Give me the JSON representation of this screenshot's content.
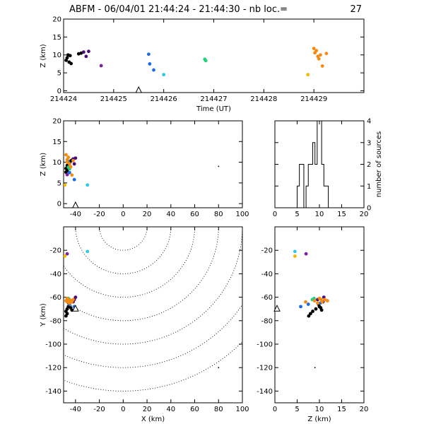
{
  "title": {
    "label": "ABFM - 06/04/01 21:44:24 - 21:44:30 - nb loc.=",
    "count": "27"
  },
  "panels": {
    "time_z": {
      "ylabel": "Z (km)",
      "xlabel": "Time (UT)",
      "xlim": [
        214424,
        214430
      ],
      "ylim": [
        -0.5,
        20
      ],
      "xticks": [
        214424,
        214425,
        214426,
        214427,
        214428,
        214429
      ],
      "yticks": [
        0,
        5,
        10,
        15,
        20
      ]
    },
    "x_z": {
      "ylabel": "Z (km)",
      "xlim": [
        -50,
        100
      ],
      "ylim": [
        -1,
        20
      ],
      "xticks": [
        -40,
        -20,
        0,
        20,
        40,
        60,
        80,
        100
      ],
      "yticks": [
        0,
        5,
        10,
        15,
        20
      ]
    },
    "hist": {
      "ylabel": "number of sources",
      "xlim": [
        0,
        20
      ],
      "ylim": [
        0,
        4
      ],
      "xticks": [
        0,
        5,
        10,
        15,
        20
      ],
      "yticks": [
        0,
        1,
        2,
        3,
        4
      ]
    },
    "x_y": {
      "ylabel": "Y (km)",
      "xlabel": "X (km)",
      "xlim": [
        -50,
        100
      ],
      "ylim": [
        -150,
        0
      ],
      "xticks": [
        -40,
        -20,
        0,
        20,
        40,
        60,
        80,
        100
      ],
      "yticks": [
        -20,
        -40,
        -60,
        -80,
        -100,
        -120,
        -140
      ]
    },
    "z_y": {
      "xlabel": "Z (km)",
      "xlim": [
        0,
        20
      ],
      "ylim": [
        -150,
        0
      ],
      "xticks": [
        0,
        5,
        10,
        15,
        20
      ],
      "yticks": [
        -20,
        -40,
        -60,
        -80,
        -100,
        -120,
        -140
      ]
    }
  },
  "chart_data": {
    "type": "scatter",
    "colors": {
      "early": "#000000",
      "purple": "#4b0a78",
      "violet": "#7a1f9e",
      "blue": "#1a6ee0",
      "cyan": "#2bc9e6",
      "green": "#22d07a",
      "orange": "#f58a10",
      "yellow": "#f5b800"
    },
    "sources": [
      {
        "t": 214424.05,
        "x": -48,
        "y": -72,
        "z": 8.5,
        "c": "early"
      },
      {
        "t": 214424.07,
        "x": -47,
        "y": -70,
        "z": 9.2,
        "c": "early"
      },
      {
        "t": 214424.09,
        "x": -46,
        "y": -68,
        "z": 10.0,
        "c": "early"
      },
      {
        "t": 214424.11,
        "x": -47,
        "y": -74,
        "z": 8.0,
        "c": "early"
      },
      {
        "t": 214424.13,
        "x": -45,
        "y": -66,
        "z": 9.8,
        "c": "early"
      },
      {
        "t": 214424.15,
        "x": -48,
        "y": -76,
        "z": 7.6,
        "c": "early"
      },
      {
        "t": 214424.3,
        "x": -44,
        "y": -69,
        "z": 10.3,
        "c": "early"
      },
      {
        "t": 214424.35,
        "x": -43,
        "y": -71,
        "z": 10.5,
        "c": "early"
      },
      {
        "t": 214424.4,
        "x": -42,
        "y": -64,
        "z": 10.8,
        "c": "purple"
      },
      {
        "t": 214424.45,
        "x": -41,
        "y": -62,
        "z": 9.6,
        "c": "purple"
      },
      {
        "t": 214424.5,
        "x": -40,
        "y": -60,
        "z": 11.0,
        "c": "purple"
      },
      {
        "t": 214424.75,
        "x": -47,
        "y": -23,
        "z": 7.0,
        "c": "violet"
      },
      {
        "t": 214425.7,
        "x": -46,
        "y": -65,
        "z": 10.2,
        "c": "blue"
      },
      {
        "t": 214425.72,
        "x": -45,
        "y": -66,
        "z": 7.5,
        "c": "blue"
      },
      {
        "t": 214425.8,
        "x": -41,
        "y": -68,
        "z": 5.8,
        "c": "blue"
      },
      {
        "t": 214426.0,
        "x": -30,
        "y": -21,
        "z": 4.5,
        "c": "cyan"
      },
      {
        "t": 214426.82,
        "x": -46,
        "y": -61,
        "z": 8.8,
        "c": "green"
      },
      {
        "t": 214426.84,
        "x": -45,
        "y": -62,
        "z": 8.4,
        "c": "green"
      },
      {
        "t": 214428.88,
        "x": -49,
        "y": -25,
        "z": 4.5,
        "c": "yellow"
      },
      {
        "t": 214429.0,
        "x": -48,
        "y": -63,
        "z": 11.8,
        "c": "orange"
      },
      {
        "t": 214429.02,
        "x": -47,
        "y": -64,
        "z": 10.6,
        "c": "orange"
      },
      {
        "t": 214429.05,
        "x": -46,
        "y": -62,
        "z": 11.2,
        "c": "orange"
      },
      {
        "t": 214429.08,
        "x": -45,
        "y": -65,
        "z": 9.6,
        "c": "orange"
      },
      {
        "t": 214429.1,
        "x": -44,
        "y": -63,
        "z": 8.9,
        "c": "orange"
      },
      {
        "t": 214429.13,
        "x": -47,
        "y": -61,
        "z": 10.0,
        "c": "orange"
      },
      {
        "t": 214429.17,
        "x": -43,
        "y": -64,
        "z": 6.9,
        "c": "orange"
      },
      {
        "t": 214429.25,
        "x": -42,
        "y": -62,
        "z": 10.4,
        "c": "orange"
      }
    ],
    "outlier": {
      "x": 80,
      "y": -120,
      "z": 9
    },
    "station": {
      "t": 214425.5,
      "x": -40,
      "y": -70,
      "z": 0
    },
    "histogram": {
      "bin_width": 0.5,
      "bins": [
        {
          "z": 4.5,
          "n": 0
        },
        {
          "z": 5.0,
          "n": 1
        },
        {
          "z": 5.5,
          "n": 2
        },
        {
          "z": 6.0,
          "n": 2
        },
        {
          "z": 6.5,
          "n": 0
        },
        {
          "z": 7.0,
          "n": 1
        },
        {
          "z": 7.5,
          "n": 2
        },
        {
          "z": 8.0,
          "n": 2
        },
        {
          "z": 8.5,
          "n": 3
        },
        {
          "z": 9.0,
          "n": 2
        },
        {
          "z": 9.5,
          "n": 4
        },
        {
          "z": 10.0,
          "n": 4
        },
        {
          "z": 10.5,
          "n": 2
        },
        {
          "z": 11.0,
          "n": 1
        },
        {
          "z": 11.5,
          "n": 1
        },
        {
          "z": 12.0,
          "n": 0
        }
      ]
    },
    "range_rings_km": [
      20,
      40,
      60,
      80,
      100,
      120,
      140
    ]
  }
}
